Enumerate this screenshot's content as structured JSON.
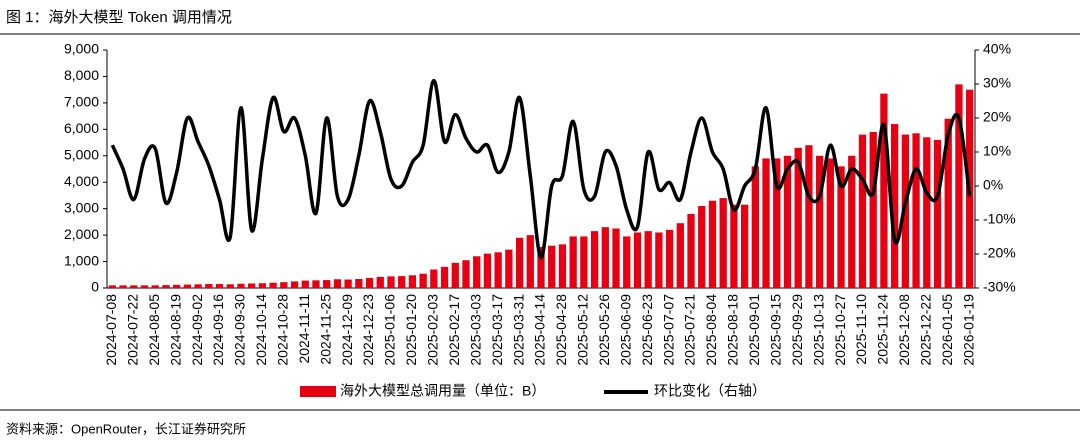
{
  "chart_data": {
    "type": "bar-line",
    "title": "图 1：海外大模型 Token 调用情况",
    "source": "资料来源：OpenRouter，长江证券研究所",
    "categories": [
      "2024-07-08",
      null,
      "2024-07-22",
      null,
      "2024-08-05",
      null,
      "2024-08-19",
      null,
      "2024-09-02",
      null,
      "2024-09-16",
      null,
      "2024-09-30",
      null,
      "2024-10-14",
      null,
      "2024-10-28",
      null,
      "2024-11-11",
      null,
      "2024-11-25",
      null,
      "2024-12-09",
      null,
      "2024-12-23",
      null,
      "2025-01-06",
      null,
      "2025-01-20",
      null,
      "2025-02-03",
      null,
      "2025-02-17",
      null,
      "2025-03-03",
      null,
      "2025-03-17",
      null,
      "2025-03-31",
      null,
      "2025-04-14",
      null,
      "2025-04-28",
      null,
      "2025-05-12",
      null,
      "2025-05-26",
      null,
      "2025-06-09",
      null,
      "2025-06-23",
      null,
      "2025-07-07",
      null,
      "2025-07-21",
      null,
      "2025-08-04",
      null,
      "2025-08-18",
      null,
      "2025-09-01",
      null,
      "2025-09-15",
      null,
      "2025-09-29",
      null,
      "2025-10-13",
      null,
      "2025-10-27",
      null,
      "2025-11-10",
      null,
      "2025-11-24",
      null,
      "2025-12-08",
      null,
      "2025-12-22",
      null,
      "2026-01-05",
      null,
      "2026-01-19"
    ],
    "series": [
      {
        "name": "海外大模型总调用量（单位：B）",
        "type": "bar",
        "color": "#e60012",
        "values": [
          100,
          100,
          100,
          100,
          100,
          110,
          120,
          130,
          140,
          150,
          150,
          140,
          160,
          170,
          180,
          200,
          220,
          250,
          280,
          290,
          300,
          330,
          320,
          340,
          380,
          420,
          440,
          450,
          480,
          540,
          700,
          800,
          950,
          1050,
          1200,
          1300,
          1350,
          1450,
          1900,
          2000,
          1550,
          1600,
          1650,
          1950,
          1950,
          2150,
          2300,
          2250,
          1950,
          2100,
          2150,
          2100,
          2200,
          2450,
          2800,
          3100,
          3300,
          3400,
          3150,
          3150,
          4600,
          4900,
          4900,
          5000,
          5300,
          5400,
          5000,
          4900,
          4600,
          5000,
          5800,
          5900,
          7350,
          6200,
          5800,
          5850,
          5700,
          5600,
          6400,
          7700,
          7500
        ]
      },
      {
        "name": "环比变化（右轴）",
        "type": "line",
        "axis": "y2",
        "color": "#000000",
        "values": [
          12,
          5,
          -4,
          8,
          11,
          -5,
          4,
          20,
          13,
          6,
          -4,
          -15,
          23,
          -13,
          8,
          26,
          16,
          20,
          9,
          -8,
          20,
          -3,
          -4,
          9,
          25,
          16,
          2,
          0,
          7,
          12,
          31,
          13,
          21,
          14,
          10,
          12,
          4,
          10,
          26,
          3,
          -21,
          0,
          3,
          19,
          -1,
          -3,
          10,
          6,
          -7,
          -12,
          10,
          -1,
          1,
          -4,
          10,
          20,
          10,
          5,
          -7,
          0,
          5,
          23,
          0,
          5,
          7,
          -3,
          -3,
          12,
          0,
          5,
          2,
          -2,
          18,
          -16,
          -5,
          5,
          -2,
          -3,
          15,
          20,
          -3
        ]
      }
    ],
    "ylim": [
      0,
      9000
    ],
    "yticks": [
      0,
      {
        "value": 1000,
        "label": "1,000"
      },
      {
        "value": 2000,
        "label": "2,000"
      },
      {
        "value": 3000,
        "label": "3,000"
      },
      {
        "value": 4000,
        "label": "4,000"
      },
      {
        "value": 5000,
        "label": "5,000"
      },
      {
        "value": 6000,
        "label": "6,000"
      },
      {
        "value": 7000,
        "label": "7,000"
      },
      {
        "value": 8000,
        "label": "8,000"
      },
      {
        "value": 9000,
        "label": "9,000"
      }
    ],
    "y2lim": [
      -30,
      40
    ],
    "y2ticks": [
      {
        "value": -30,
        "label": "-30%"
      },
      {
        "value": -20,
        "label": "-20%"
      },
      {
        "value": -10,
        "label": "-10%"
      },
      {
        "value": 0,
        "label": "0%"
      },
      {
        "value": 10,
        "label": "10%"
      },
      {
        "value": 20,
        "label": "20%"
      },
      {
        "value": 30,
        "label": "30%"
      },
      {
        "value": 40,
        "label": "40%"
      }
    ],
    "grid": false
  }
}
